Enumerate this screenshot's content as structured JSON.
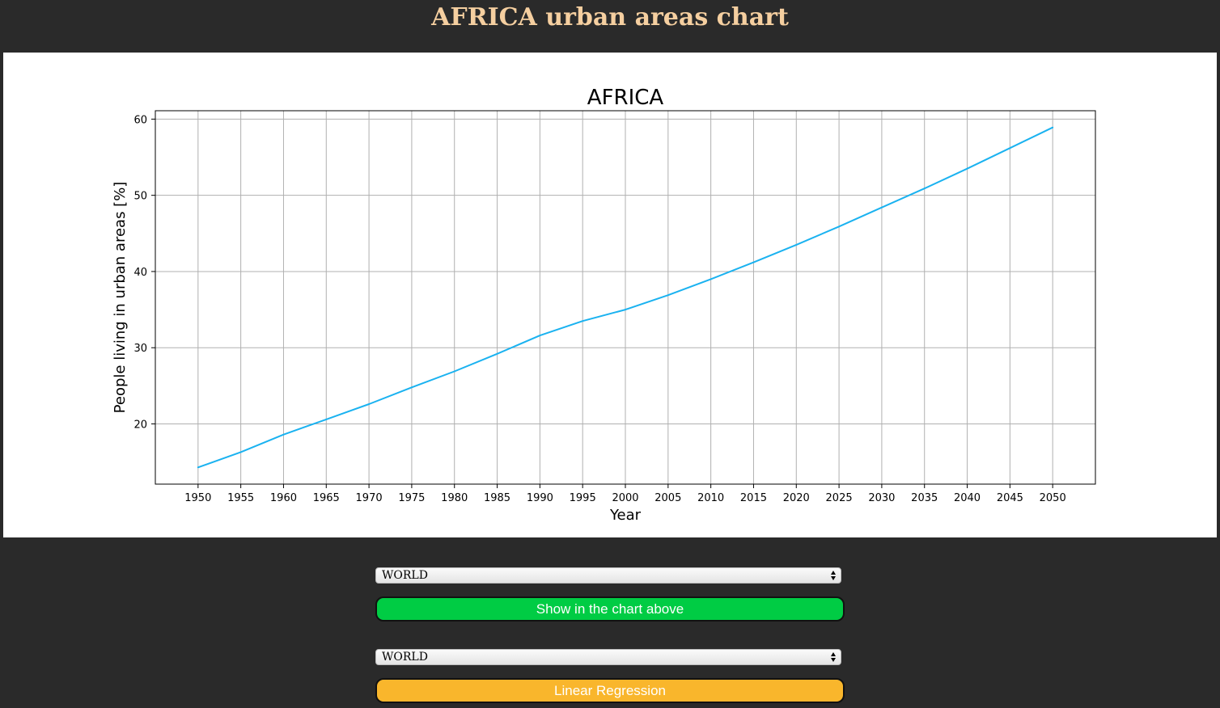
{
  "page": {
    "title": "AFRICA urban areas chart"
  },
  "chart_data": {
    "type": "line",
    "title": "AFRICA",
    "xlabel": "Year",
    "ylabel": "People living in urban areas [%]",
    "x": [
      1950,
      1955,
      1960,
      1965,
      1970,
      1975,
      1980,
      1985,
      1990,
      1995,
      2000,
      2005,
      2010,
      2015,
      2020,
      2025,
      2030,
      2035,
      2040,
      2045,
      2050
    ],
    "series": [
      {
        "values": [
          14.3,
          16.3,
          18.6,
          20.6,
          22.6,
          24.8,
          26.9,
          29.2,
          31.6,
          33.5,
          35.0,
          36.9,
          39.0,
          41.2,
          43.5,
          45.9,
          48.4,
          50.9,
          53.5,
          56.2,
          58.9
        ],
        "color": "#1ab2f0"
      }
    ],
    "xticks": [
      "1950",
      "1955",
      "1960",
      "1965",
      "1970",
      "1975",
      "1980",
      "1985",
      "1990",
      "1995",
      "2000",
      "2005",
      "2010",
      "2015",
      "2020",
      "2025",
      "2030",
      "2035",
      "2040",
      "2045",
      "2050"
    ],
    "yticks": [
      20,
      30,
      40,
      50,
      60
    ],
    "xlim": [
      1945,
      2055
    ],
    "ylim": [
      12.1,
      61.1
    ],
    "grid": true
  },
  "controls": {
    "select1": {
      "value": "WORLD"
    },
    "show_button_label": "Show in the chart above",
    "select2": {
      "value": "WORLD"
    },
    "regression_button_label": "Linear Regression"
  },
  "colors": {
    "background": "#2a2a2a",
    "title": "#f5cfa0",
    "line": "#1ab2f0",
    "show_button": "#00cc44",
    "regression_button": "#f9b62c"
  }
}
